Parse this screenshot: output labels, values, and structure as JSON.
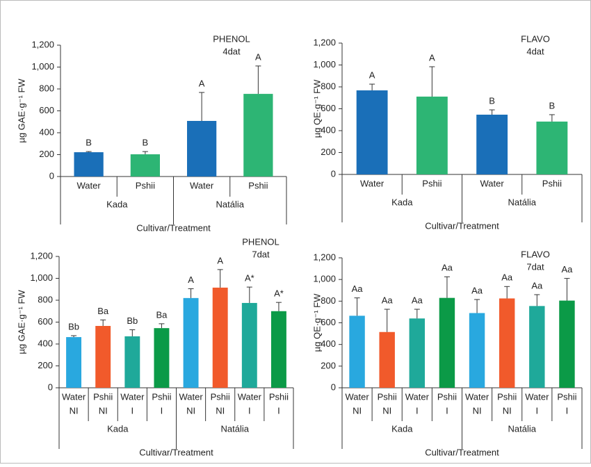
{
  "chart_data": [
    {
      "type": "bar",
      "title": "PHENOL",
      "subtitle": "4dat",
      "ylabel": "µg GAE·g⁻¹ FW",
      "xlabel": "Cultivar/Treatment",
      "categories": [
        [
          "Water"
        ],
        [
          "Pshii"
        ],
        [
          "Water"
        ],
        [
          "Pshii"
        ]
      ],
      "groups": [
        "Kada",
        "Natália"
      ],
      "values": [
        222,
        203,
        508,
        755
      ],
      "errors": [
        6,
        25,
        260,
        255
      ],
      "annotations": [
        "B",
        "B",
        "A",
        "A"
      ],
      "colors": [
        "#1a6fb8",
        "#2db574",
        "#1a6fb8",
        "#2db574"
      ],
      "ylim": [
        0,
        1200
      ],
      "yticks": [
        0,
        200,
        400,
        600,
        800,
        {
          "value": 1000,
          "label": "1,000"
        },
        {
          "value": 1200,
          "label": "1,200"
        }
      ]
    },
    {
      "type": "bar",
      "title": "FLAVO",
      "subtitle": "4dat",
      "ylabel": "µg QE·g⁻¹ FW",
      "xlabel": "Cultivar/Treatment",
      "categories": [
        [
          "Water"
        ],
        [
          "Pshii"
        ],
        [
          "Water"
        ],
        [
          "Pshii"
        ]
      ],
      "groups": [
        "Kada",
        "Natália"
      ],
      "values": [
        768,
        711,
        546,
        483
      ],
      "errors": [
        57,
        273,
        44,
        63
      ],
      "annotations": [
        "A",
        "A",
        "B",
        "B"
      ],
      "colors": [
        "#1a6fb8",
        "#2db574",
        "#1a6fb8",
        "#2db574"
      ],
      "ylim": [
        0,
        1200
      ],
      "yticks": [
        0,
        200,
        400,
        600,
        800,
        {
          "value": 1000,
          "label": "1,000"
        },
        {
          "value": 1200,
          "label": "1,200"
        }
      ]
    },
    {
      "type": "bar",
      "title": "PHENOL",
      "subtitle": "7dat",
      "ylabel": "µg GAE·g⁻¹ FW",
      "xlabel": "Cultivar/Treatment",
      "categories": [
        [
          "Water",
          "NI"
        ],
        [
          "Pshii",
          "NI"
        ],
        [
          "Water",
          "I"
        ],
        [
          "Pshii",
          "I"
        ],
        [
          "Water",
          "NI"
        ],
        [
          "Pshii",
          "NI"
        ],
        [
          "Water",
          "I"
        ],
        [
          "Pshii",
          "I"
        ]
      ],
      "groups": [
        "Kada",
        "Natália"
      ],
      "values": [
        463,
        565,
        470,
        545,
        820,
        915,
        775,
        700
      ],
      "errors": [
        13,
        55,
        60,
        40,
        85,
        165,
        145,
        80
      ],
      "annotations": [
        "Bb",
        "Ba",
        "Bb",
        "Ba",
        "A",
        "A",
        "A*",
        "A*"
      ],
      "colors": [
        "#29a8df",
        "#f15a2b",
        "#1fa99a",
        "#0b9a47",
        "#29a8df",
        "#f15a2b",
        "#1fa99a",
        "#0b9a47"
      ],
      "ylim": [
        0,
        1200
      ],
      "yticks": [
        0,
        200,
        400,
        600,
        800,
        {
          "value": 1000,
          "label": "1,000"
        },
        {
          "value": 1200,
          "label": "1,200"
        }
      ]
    },
    {
      "type": "bar",
      "title": "FLAVO",
      "subtitle": "7dat",
      "ylabel": "µg QE·g⁻¹ FW",
      "xlabel": "Cultivar/Treatment",
      "categories": [
        [
          "Water",
          "NI"
        ],
        [
          "Pshii",
          "NI"
        ],
        [
          "Water",
          "I"
        ],
        [
          "Pshii",
          "I"
        ],
        [
          "Water",
          "NI"
        ],
        [
          "Pshii",
          "NI"
        ],
        [
          "Water",
          "I"
        ],
        [
          "Pshii",
          "I"
        ]
      ],
      "groups": [
        "Kada",
        "Natália"
      ],
      "values": [
        665,
        515,
        640,
        830,
        690,
        825,
        755,
        805
      ],
      "errors": [
        165,
        210,
        85,
        195,
        125,
        110,
        105,
        205
      ],
      "annotations": [
        "Aa",
        "Aa",
        "Aa",
        "Aa",
        "Aa",
        "Aa",
        "Aa",
        "Aa"
      ],
      "colors": [
        "#29a8df",
        "#f15a2b",
        "#1fa99a",
        "#0b9a47",
        "#29a8df",
        "#f15a2b",
        "#1fa99a",
        "#0b9a47"
      ],
      "ylim": [
        0,
        1200
      ],
      "yticks": [
        0,
        200,
        400,
        600,
        800,
        {
          "value": 1000,
          "label": "1,000"
        },
        {
          "value": 1200,
          "label": "1,200"
        }
      ]
    }
  ]
}
